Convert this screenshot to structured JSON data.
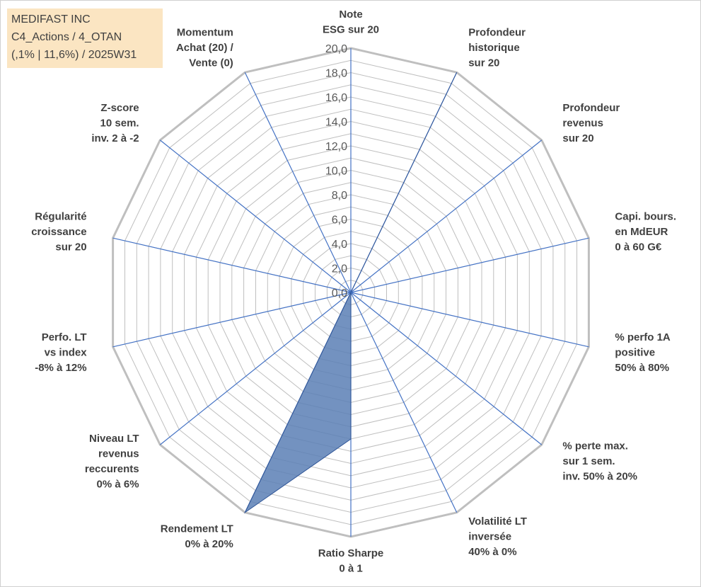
{
  "header": {
    "line1": "MEDIFAST INC",
    "line2": "C4_Actions / 4_OTAN",
    "line3": "(,1% | 11,6%) / 2025W31"
  },
  "colors": {
    "series_fill": "#5b7fb5",
    "spoke": "#4472c4",
    "grid": "#bfbfbf",
    "title_bg": "#fbe5c2"
  },
  "chart_data": {
    "type": "radar",
    "title": "",
    "rmin": 0,
    "rmax": 20,
    "tick_step": 2,
    "tick_labels": [
      "0,0",
      "2,0",
      "4,0",
      "6,0",
      "8,0",
      "10,0",
      "12,0",
      "14,0",
      "16,0",
      "18,0",
      "20,0"
    ],
    "categories": [
      [
        "Note",
        "ESG sur 20"
      ],
      [
        "Profondeur",
        "historique",
        "sur 20"
      ],
      [
        "Profondeur",
        "revenus",
        "sur 20"
      ],
      [
        "Capi. bours.",
        "en MdEUR",
        "0 à 60 G€"
      ],
      [
        "% perfo 1A",
        "positive",
        "50% à 80%"
      ],
      [
        "% perte max.",
        "sur 1 sem.",
        "inv. 50% à 20%"
      ],
      [
        "Volatilité LT",
        "inversée",
        "40% à 0%"
      ],
      [
        "Ratio Sharpe",
        "0 à 1"
      ],
      [
        "Rendement LT",
        "0% à 20%"
      ],
      [
        "Niveau LT",
        "revenus",
        "reccurents",
        "0% à 6%"
      ],
      [
        "Perfo. LT",
        "vs index",
        "-8% à 12%"
      ],
      [
        "Régularité",
        "croissance",
        "sur 20"
      ],
      [
        "Z-score",
        "10 sem.",
        "inv. 2 à -2"
      ],
      [
        "Momentum",
        "Achat (20) /",
        "Vente (0)"
      ]
    ],
    "series": [
      {
        "values": [
          0,
          20,
          0,
          0,
          0,
          0,
          0,
          12,
          20,
          0,
          0,
          0,
          0,
          0
        ]
      }
    ],
    "grid": true,
    "legend": "none"
  }
}
